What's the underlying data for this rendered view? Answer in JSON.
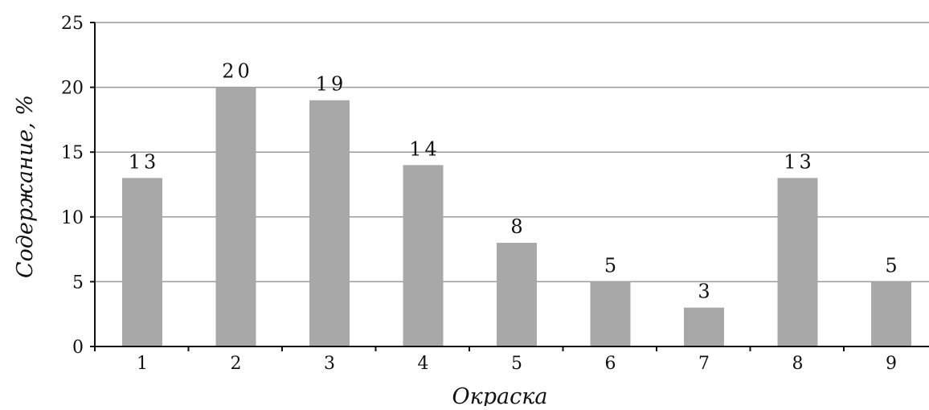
{
  "chart_data": {
    "type": "bar",
    "title": "",
    "xlabel": "Окраска",
    "ylabel": "Содержание, %",
    "categories": [
      "1",
      "2",
      "3",
      "4",
      "5",
      "6",
      "7",
      "8",
      "9"
    ],
    "values": [
      13,
      20,
      19,
      14,
      8,
      5,
      3,
      13,
      5
    ],
    "data_labels": [
      "13",
      "20",
      "19",
      "14",
      "8",
      "5",
      "3",
      "13",
      "5"
    ],
    "ylim": [
      0,
      25
    ],
    "yticks": [
      0,
      5,
      10,
      15,
      20,
      25
    ],
    "grid": true,
    "legend": "none",
    "colors": {
      "bar": "#a8a8a8",
      "grid": "#9a9a9a",
      "axis": "#111111"
    }
  }
}
